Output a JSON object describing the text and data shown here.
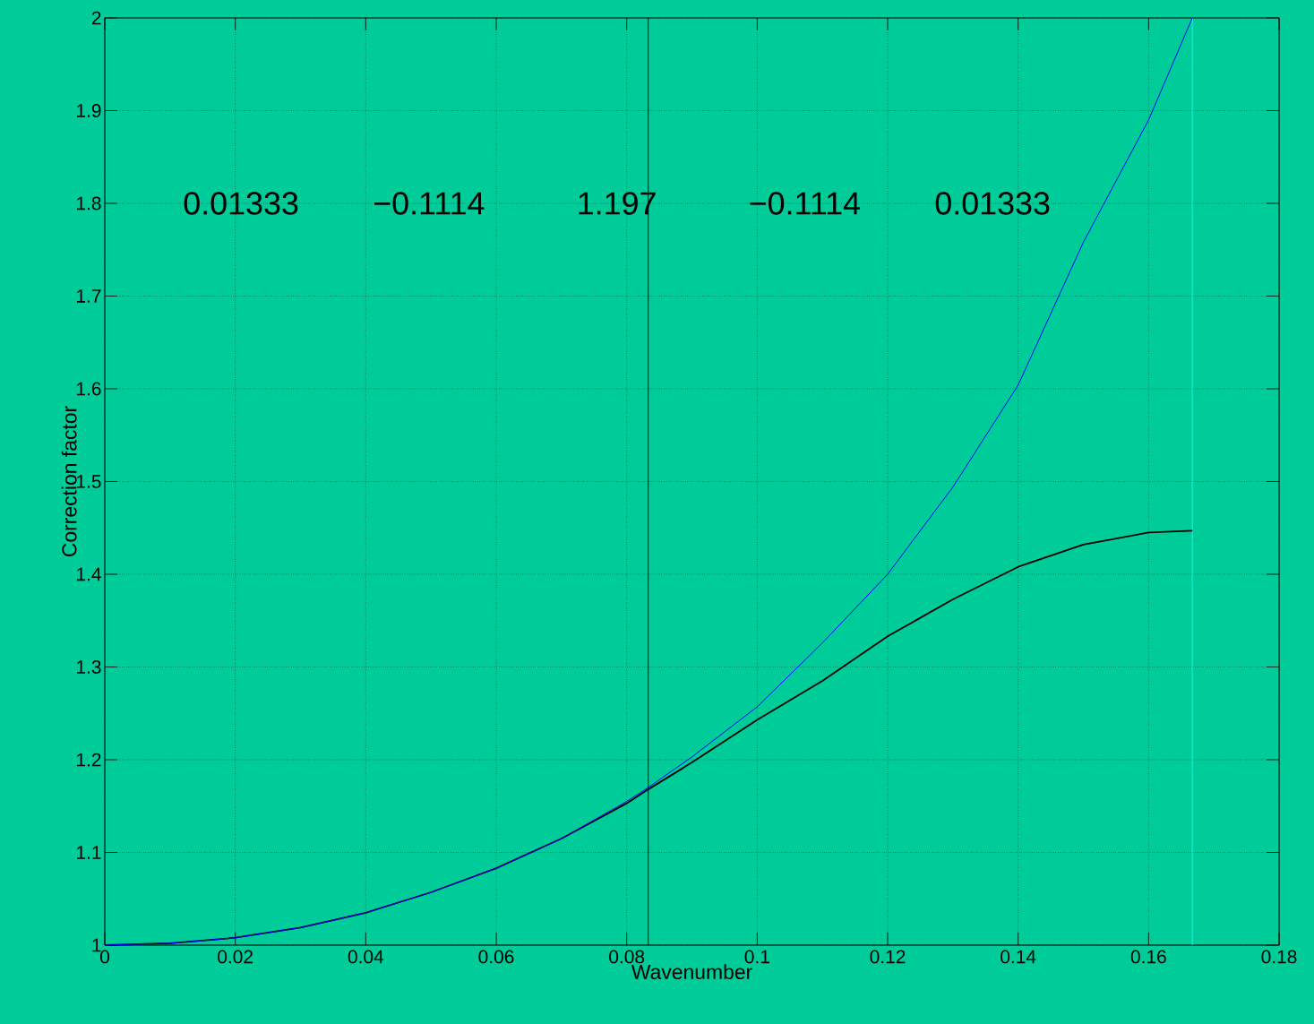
{
  "chart_data": {
    "type": "line",
    "xlabel": "Wavenumber",
    "ylabel": "Correction factor",
    "x": [
      0,
      0.01,
      0.02,
      0.03,
      0.04,
      0.05,
      0.06,
      0.07,
      0.08,
      0.0833,
      0.09,
      0.1,
      0.11,
      0.12,
      0.13,
      0.14,
      0.15,
      0.16,
      0.1667
    ],
    "series": [
      {
        "color": "#0000ff",
        "values": [
          1,
          1.002,
          1.008,
          1.019,
          1.035,
          1.057,
          1.083,
          1.115,
          1.155,
          1.17,
          1.203,
          1.257,
          1.326,
          1.4,
          1.494,
          1.604,
          1.758,
          1.89,
          2.0
        ]
      },
      {
        "color": "#000000",
        "values": [
          1,
          1.002,
          1.008,
          1.019,
          1.035,
          1.057,
          1.083,
          1.115,
          1.153,
          1.168,
          1.197,
          1.243,
          1.285,
          1.333,
          1.373,
          1.408,
          1.432,
          1.445,
          1.447
        ]
      }
    ],
    "xlim": [
      0,
      0.18
    ],
    "ylim": [
      1,
      2
    ],
    "xticks": [
      0,
      0.02,
      0.04,
      0.06,
      0.08,
      0.1,
      0.12,
      0.14,
      0.16,
      0.18
    ],
    "yticks": [
      1,
      1.1,
      1.2,
      1.3,
      1.4,
      1.5,
      1.6,
      1.7,
      1.8,
      1.9,
      2
    ],
    "grid": true,
    "ref_lines": [
      {
        "axis": "x",
        "value": 0.0833,
        "color": "#000000"
      },
      {
        "axis": "x",
        "value": 0.1667,
        "color": "#00ffff"
      }
    ],
    "annotations": [
      "0.01333",
      "−0.1114",
      "1.197",
      "−0.1114",
      "0.01333"
    ]
  }
}
